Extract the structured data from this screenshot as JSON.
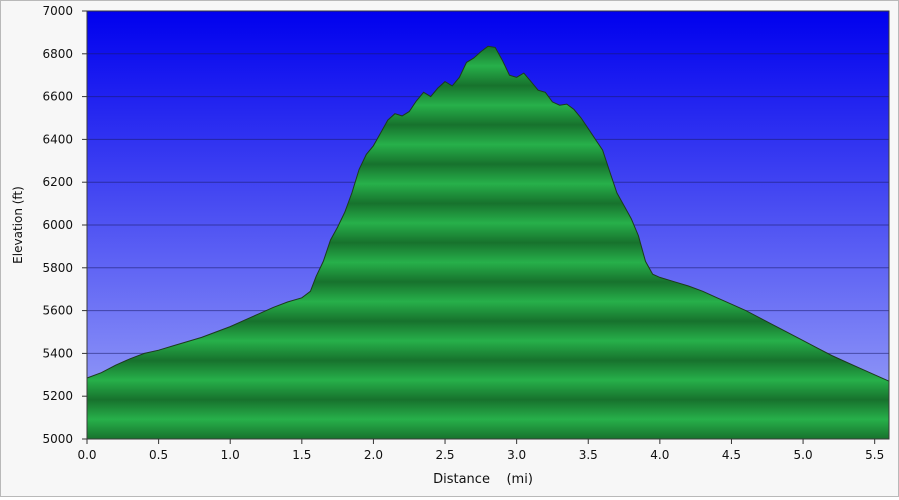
{
  "chart_data": {
    "type": "area",
    "title": "",
    "xlabel": "Distance    (mi)",
    "ylabel": "Elevation  (ft)",
    "xlim": [
      0.0,
      5.6
    ],
    "ylim": [
      5000,
      7000
    ],
    "x_ticks": [
      "0.0",
      "0.5",
      "1.0",
      "1.5",
      "2.0",
      "2.5",
      "3.0",
      "3.5",
      "4.0",
      "4.5",
      "5.0",
      "5.5"
    ],
    "y_ticks": [
      "5000",
      "5200",
      "5400",
      "5600",
      "5800",
      "6000",
      "6200",
      "6400",
      "6600",
      "6800",
      "7000"
    ],
    "grid": true,
    "legend": "none",
    "series": [
      {
        "x": [
          0.0,
          0.1,
          0.2,
          0.3,
          0.4,
          0.5,
          0.6,
          0.7,
          0.8,
          0.9,
          1.0,
          1.1,
          1.2,
          1.3,
          1.4,
          1.5,
          1.52,
          1.56,
          1.6,
          1.65,
          1.7,
          1.75,
          1.8,
          1.85,
          1.9,
          1.95,
          2.0,
          2.05,
          2.1,
          2.15,
          2.2,
          2.25,
          2.3,
          2.35,
          2.4,
          2.45,
          2.5,
          2.55,
          2.6,
          2.65,
          2.7,
          2.75,
          2.8,
          2.85,
          2.9,
          2.95,
          3.0,
          3.05,
          3.1,
          3.15,
          3.2,
          3.25,
          3.3,
          3.35,
          3.4,
          3.45,
          3.5,
          3.55,
          3.6,
          3.65,
          3.7,
          3.75,
          3.8,
          3.85,
          3.9,
          3.95,
          4.0,
          4.1,
          4.2,
          4.3,
          4.4,
          4.5,
          4.6,
          4.7,
          4.8,
          4.9,
          5.0,
          5.1,
          5.2,
          5.3,
          5.4,
          5.5,
          5.6
        ],
        "y": [
          5285,
          5310,
          5345,
          5375,
          5400,
          5415,
          5435,
          5455,
          5475,
          5500,
          5525,
          5555,
          5585,
          5615,
          5640,
          5660,
          5670,
          5690,
          5760,
          5830,
          5930,
          5990,
          6060,
          6150,
          6260,
          6330,
          6370,
          6430,
          6490,
          6520,
          6510,
          6530,
          6580,
          6620,
          6600,
          6640,
          6670,
          6650,
          6690,
          6760,
          6780,
          6810,
          6835,
          6830,
          6770,
          6700,
          6690,
          6710,
          6670,
          6630,
          6620,
          6575,
          6560,
          6565,
          6540,
          6500,
          6450,
          6400,
          6350,
          6250,
          6150,
          6090,
          6030,
          5950,
          5830,
          5770,
          5755,
          5735,
          5715,
          5690,
          5660,
          5630,
          5600,
          5565,
          5530,
          5495,
          5460,
          5425,
          5390,
          5360,
          5330,
          5300,
          5270
        ]
      }
    ]
  }
}
